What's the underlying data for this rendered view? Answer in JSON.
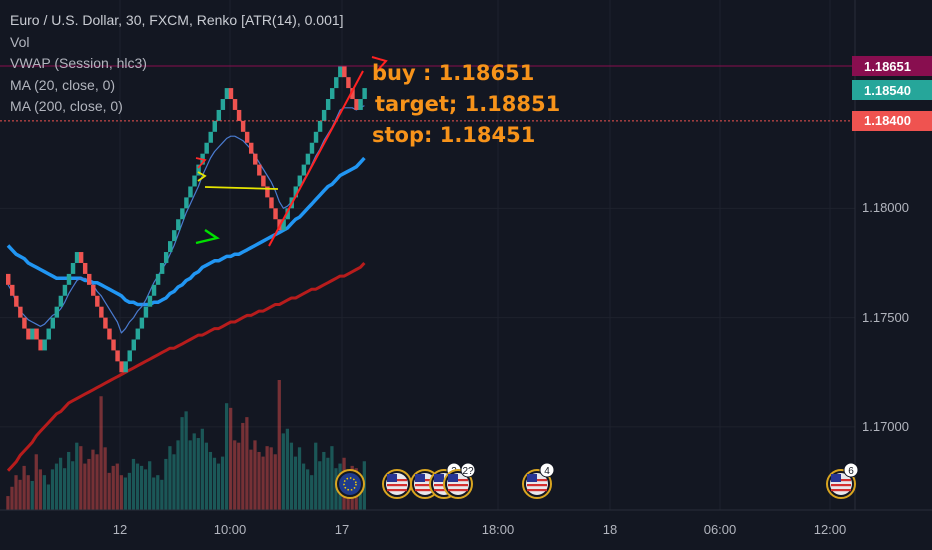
{
  "header": {
    "title": "Euro / U.S. Dollar, 30, FXCM, Renko [ATR(14), 0.001]",
    "indicators": [
      "Vol",
      "VWAP (Session, hlc3)",
      "MA (20, close, 0)",
      "MA (200, close, 0)"
    ]
  },
  "annotation": {
    "lines": [
      "buy : 1.18651",
      "target; 1.18851",
      "stop: 1.18451"
    ],
    "color": "#f7931a"
  },
  "price_tags": [
    {
      "label": "1.18651",
      "value": 1.18651,
      "color": "#880e4f"
    },
    {
      "label": "1.18540",
      "value": 1.1854,
      "color": "#26a69a"
    },
    {
      "label": "1.18400",
      "value": 1.184,
      "color": "#ef5350"
    }
  ],
  "event_badges": [
    "3",
    "2?",
    "4",
    "6"
  ],
  "chart_data": {
    "type": "candlestick",
    "subtype": "renko",
    "box_size": 0.0005,
    "y_ticks": [
      1.17,
      1.175,
      1.18
    ],
    "y_tick_labels": [
      "1.17000",
      "1.17500",
      "1.18000"
    ],
    "x_tick_labels": [
      "12",
      "10:00",
      "17",
      "18:00",
      "18",
      "06:00",
      "12:00"
    ],
    "bricks_open_close": [
      [
        1.177,
        1.1765
      ],
      [
        1.1765,
        1.176
      ],
      [
        1.176,
        1.1755
      ],
      [
        1.1755,
        1.175
      ],
      [
        1.175,
        1.1745
      ],
      [
        1.1745,
        1.174
      ],
      [
        1.174,
        1.1745
      ],
      [
        1.1745,
        1.174
      ],
      [
        1.174,
        1.1735
      ],
      [
        1.1735,
        1.174
      ],
      [
        1.174,
        1.1745
      ],
      [
        1.1745,
        1.175
      ],
      [
        1.175,
        1.1755
      ],
      [
        1.1755,
        1.176
      ],
      [
        1.176,
        1.1765
      ],
      [
        1.1765,
        1.177
      ],
      [
        1.177,
        1.1775
      ],
      [
        1.1775,
        1.178
      ],
      [
        1.178,
        1.1775
      ],
      [
        1.1775,
        1.177
      ],
      [
        1.177,
        1.1765
      ],
      [
        1.1765,
        1.176
      ],
      [
        1.176,
        1.1755
      ],
      [
        1.1755,
        1.175
      ],
      [
        1.175,
        1.1745
      ],
      [
        1.1745,
        1.174
      ],
      [
        1.174,
        1.1735
      ],
      [
        1.1735,
        1.173
      ],
      [
        1.173,
        1.1725
      ],
      [
        1.1725,
        1.173
      ],
      [
        1.173,
        1.1735
      ],
      [
        1.1735,
        1.174
      ],
      [
        1.174,
        1.1745
      ],
      [
        1.1745,
        1.175
      ],
      [
        1.175,
        1.1755
      ],
      [
        1.1755,
        1.176
      ],
      [
        1.176,
        1.1765
      ],
      [
        1.1765,
        1.177
      ],
      [
        1.177,
        1.1775
      ],
      [
        1.1775,
        1.178
      ],
      [
        1.178,
        1.1785
      ],
      [
        1.1785,
        1.179
      ],
      [
        1.179,
        1.1795
      ],
      [
        1.1795,
        1.18
      ],
      [
        1.18,
        1.1805
      ],
      [
        1.1805,
        1.181
      ],
      [
        1.181,
        1.1815
      ],
      [
        1.1815,
        1.182
      ],
      [
        1.182,
        1.1825
      ],
      [
        1.1825,
        1.183
      ],
      [
        1.183,
        1.1835
      ],
      [
        1.1835,
        1.184
      ],
      [
        1.184,
        1.1845
      ],
      [
        1.1845,
        1.185
      ],
      [
        1.185,
        1.1855
      ],
      [
        1.1855,
        1.185
      ],
      [
        1.185,
        1.1845
      ],
      [
        1.1845,
        1.184
      ],
      [
        1.184,
        1.1835
      ],
      [
        1.1835,
        1.183
      ],
      [
        1.183,
        1.1825
      ],
      [
        1.1825,
        1.182
      ],
      [
        1.182,
        1.1815
      ],
      [
        1.1815,
        1.181
      ],
      [
        1.181,
        1.1805
      ],
      [
        1.1805,
        1.18
      ],
      [
        1.18,
        1.1795
      ],
      [
        1.1795,
        1.179
      ],
      [
        1.179,
        1.1795
      ],
      [
        1.1795,
        1.18
      ],
      [
        1.18,
        1.1805
      ],
      [
        1.1805,
        1.181
      ],
      [
        1.181,
        1.1815
      ],
      [
        1.1815,
        1.182
      ],
      [
        1.182,
        1.1825
      ],
      [
        1.1825,
        1.183
      ],
      [
        1.183,
        1.1835
      ],
      [
        1.1835,
        1.184
      ],
      [
        1.184,
        1.1845
      ],
      [
        1.1845,
        1.185
      ],
      [
        1.185,
        1.1855
      ],
      [
        1.1855,
        1.186
      ],
      [
        1.186,
        1.1865
      ],
      [
        1.1865,
        1.186
      ],
      [
        1.186,
        1.1855
      ],
      [
        1.1855,
        1.185
      ],
      [
        1.185,
        1.1845
      ],
      [
        1.1845,
        1.185
      ],
      [
        1.185,
        1.1855
      ]
    ],
    "vwap": [
      1.1765,
      1.1762,
      1.1757,
      1.1753,
      1.1751,
      1.1749,
      1.1748,
      1.1747,
      1.1746,
      1.1747,
      1.1749,
      1.1751,
      1.1752,
      1.1754,
      1.1757,
      1.1761,
      1.1764,
      1.1767,
      1.1768,
      1.1768,
      1.1767,
      1.1765,
      1.1762,
      1.176,
      1.1757,
      1.1754,
      1.1751,
      1.1748,
      1.1743,
      1.1745,
      1.1748,
      1.175,
      1.1753,
      1.1755,
      1.1758,
      1.1762,
      1.1766,
      1.1769,
      1.1772,
      1.1775,
      1.1779,
      1.1783,
      1.1788,
      1.1793,
      1.1798,
      1.1802,
      1.1806,
      1.181,
      1.1815,
      1.1819,
      1.1823,
      1.1826,
      1.1828,
      1.183,
      1.1832,
      1.1833,
      1.1833,
      1.1832,
      1.1831,
      1.1829,
      1.1827,
      1.1824,
      1.1821,
      1.1818,
      1.1815,
      1.1812,
      1.1808,
      1.1803,
      1.18,
      1.1801,
      1.1803,
      1.1806,
      1.1809,
      1.1813,
      1.1816,
      1.182,
      1.1824,
      1.1827,
      1.1831,
      1.1834,
      1.1837,
      1.1841,
      1.1845,
      1.1846,
      1.1846,
      1.1846,
      1.1845,
      1.1846,
      1.1847
    ],
    "ma20": [
      1.1783,
      1.1781,
      1.1779,
      1.1778,
      1.1777,
      1.1775,
      1.1774,
      1.1773,
      1.1772,
      1.1771,
      1.177,
      1.1769,
      1.1768,
      1.1768,
      1.1768,
      1.1768,
      1.1768,
      1.1768,
      1.1768,
      1.1767,
      1.1767,
      1.1766,
      1.1766,
      1.1765,
      1.1764,
      1.1763,
      1.1762,
      1.1761,
      1.176,
      1.1758,
      1.1757,
      1.1757,
      1.1756,
      1.1756,
      1.1756,
      1.1756,
      1.1757,
      1.1757,
      1.1758,
      1.1759,
      1.1761,
      1.1762,
      1.1764,
      1.1765,
      1.1767,
      1.1768,
      1.177,
      1.1771,
      1.1773,
      1.1774,
      1.1775,
      1.1776,
      1.1776,
      1.1777,
      1.1778,
      1.1778,
      1.1779,
      1.1779,
      1.178,
      1.1781,
      1.1782,
      1.1783,
      1.1784,
      1.1785,
      1.1786,
      1.1787,
      1.1788,
      1.1789,
      1.179,
      1.1791,
      1.1793,
      1.1795,
      1.1796,
      1.1798,
      1.18,
      1.1802,
      1.1804,
      1.1806,
      1.1808,
      1.181,
      1.1811,
      1.1813,
      1.1815,
      1.1816,
      1.1817,
      1.1818,
      1.1819,
      1.1821,
      1.1823
    ],
    "ma200": [
      1.168,
      1.1682,
      1.1684,
      1.1687,
      1.1689,
      1.1691,
      1.1693,
      1.1696,
      1.1698,
      1.17,
      1.1702,
      1.1704,
      1.1706,
      1.1707,
      1.1709,
      1.1711,
      1.1712,
      1.1713,
      1.1714,
      1.1715,
      1.1716,
      1.1717,
      1.1718,
      1.1719,
      1.172,
      1.1721,
      1.1722,
      1.1723,
      1.1724,
      1.1725,
      1.1726,
      1.1727,
      1.1728,
      1.1729,
      1.173,
      1.1731,
      1.1732,
      1.1733,
      1.1734,
      1.1735,
      1.1736,
      1.1736,
      1.1737,
      1.1738,
      1.1739,
      1.174,
      1.1741,
      1.1742,
      1.1742,
      1.1743,
      1.1744,
      1.1745,
      1.1745,
      1.1746,
      1.1747,
      1.1748,
      1.1748,
      1.1749,
      1.175,
      1.1751,
      1.1751,
      1.1752,
      1.1753,
      1.1753,
      1.1754,
      1.1755,
      1.1756,
      1.1756,
      1.1757,
      1.1758,
      1.1759,
      1.1759,
      1.176,
      1.1761,
      1.1762,
      1.1763,
      1.1763,
      1.1764,
      1.1765,
      1.1766,
      1.1767,
      1.1768,
      1.1769,
      1.1769,
      1.177,
      1.1771,
      1.1772,
      1.1773,
      1.1775
    ],
    "volume": [
      12,
      20,
      30,
      26,
      38,
      30,
      25,
      48,
      35,
      30,
      22,
      35,
      40,
      45,
      36,
      50,
      42,
      58,
      55,
      40,
      44,
      52,
      48,
      98,
      54,
      32,
      38,
      40,
      30,
      28,
      32,
      44,
      40,
      38,
      35,
      42,
      28,
      30,
      26,
      44,
      55,
      48,
      60,
      80,
      85,
      60,
      66,
      62,
      70,
      58,
      50,
      45,
      40,
      46,
      92,
      88,
      60,
      58,
      75,
      80,
      52,
      60,
      50,
      46,
      55,
      54,
      48,
      112,
      66,
      70,
      58,
      46,
      54,
      40,
      35,
      30,
      58,
      42,
      50,
      45,
      55,
      36,
      40,
      45,
      32,
      38,
      36,
      28,
      42
    ],
    "ylim": [
      1.1662,
      1.1877
    ]
  }
}
